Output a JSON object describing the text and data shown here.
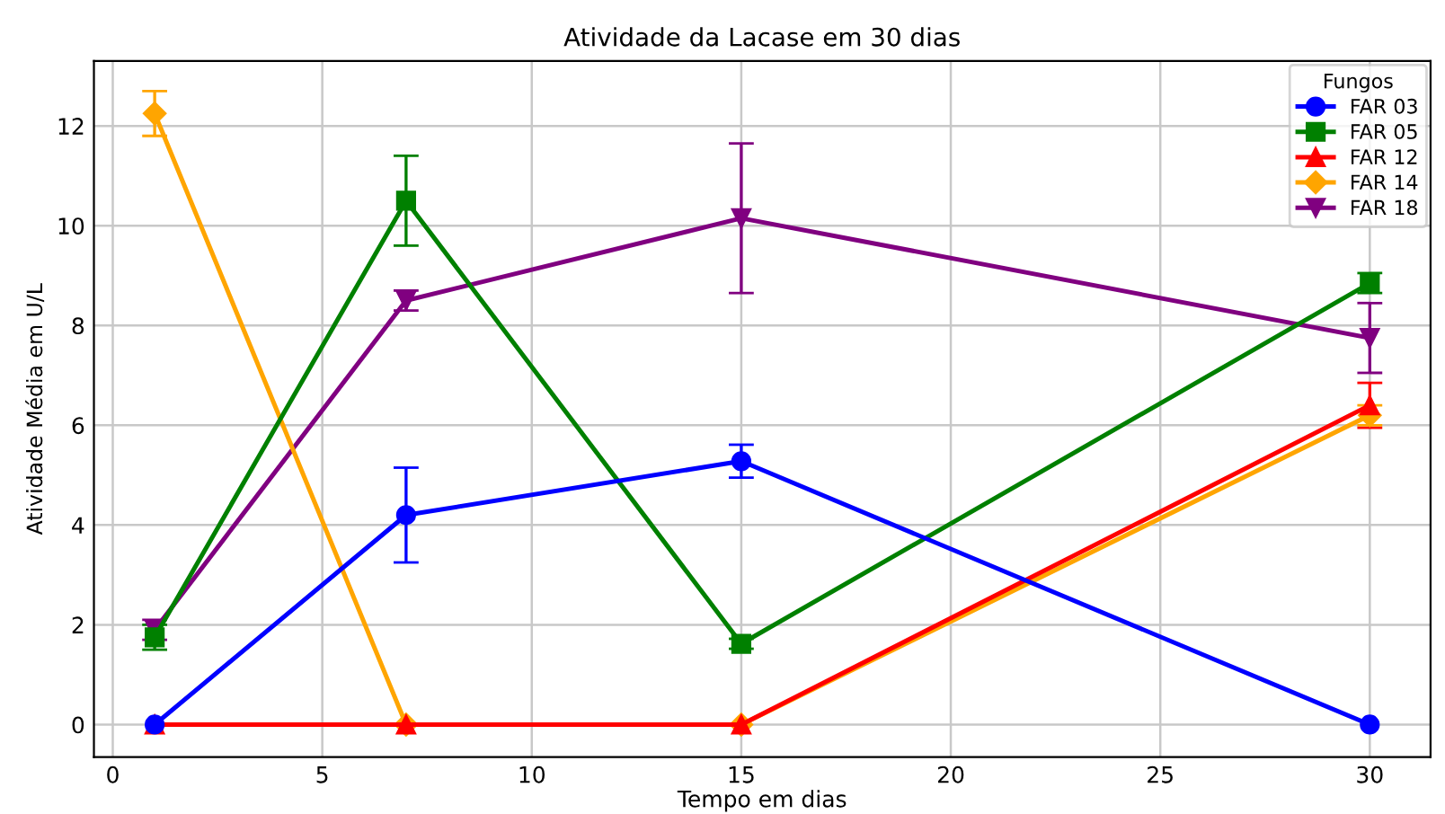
{
  "chart_data": {
    "type": "line",
    "title": "Atividade da Lacase em 30 dias",
    "xlabel": "Tempo em dias",
    "ylabel": "Atividade Média em U/L",
    "legend_title": "Fungos",
    "x": [
      1,
      7,
      15,
      30
    ],
    "series": [
      {
        "name": "FAR 03",
        "color": "#0000ff",
        "marker": "circle",
        "values": [
          0,
          4.2,
          5.28,
          0
        ],
        "errors": [
          null,
          0.95,
          0.33,
          null
        ]
      },
      {
        "name": "FAR 05",
        "color": "#008000",
        "marker": "square",
        "values": [
          1.75,
          10.5,
          1.62,
          8.85
        ],
        "errors": [
          0.25,
          0.9,
          0.1,
          0.2
        ]
      },
      {
        "name": "FAR 12",
        "color": "#ff0000",
        "marker": "triangle",
        "values": [
          0,
          0,
          0,
          6.4
        ],
        "errors": [
          null,
          null,
          null,
          0.45
        ]
      },
      {
        "name": "FAR 14",
        "color": "#ffa500",
        "marker": "diamond",
        "values": [
          12.25,
          0,
          0,
          6.2
        ],
        "errors": [
          0.45,
          null,
          null,
          0.2
        ]
      },
      {
        "name": "FAR 18",
        "color": "#800080",
        "marker": "triangle_down",
        "values": [
          1.9,
          8.5,
          10.15,
          7.75
        ],
        "errors": [
          0.2,
          0.2,
          1.5,
          0.7
        ]
      }
    ],
    "xlim": [
      -0.45,
      31.45
    ],
    "xticks": [
      0,
      5,
      10,
      15,
      20,
      25,
      30
    ],
    "ylim": [
      -0.65,
      13.3
    ],
    "yticks": [
      0,
      2,
      4,
      6,
      8,
      10,
      12
    ],
    "grid": true,
    "legend": "top right",
    "line_style": "solid"
  }
}
